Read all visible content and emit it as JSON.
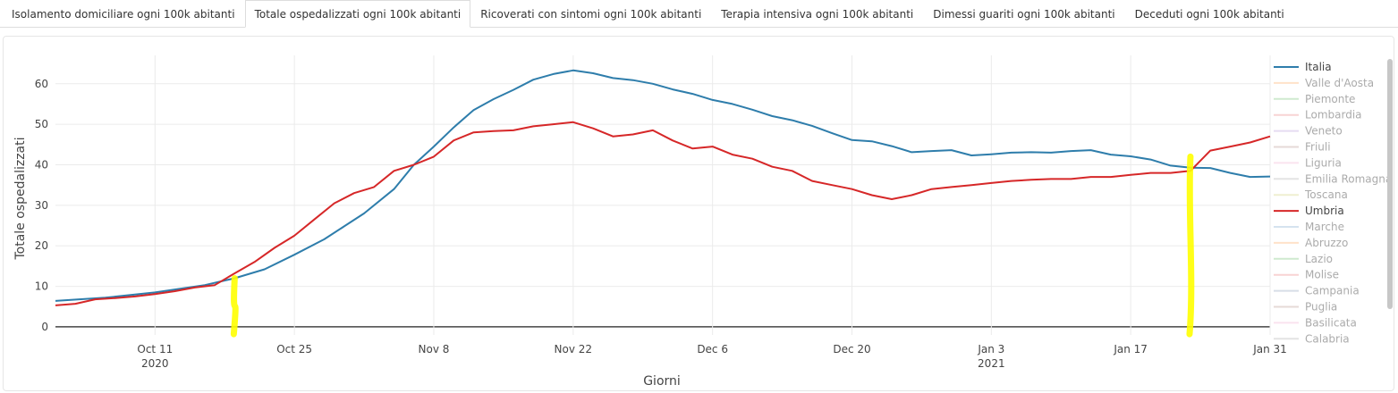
{
  "tabs": [
    {
      "label": "Isolamento domiciliare ogni 100k abitanti",
      "active": false
    },
    {
      "label": "Totale ospedalizzati ogni 100k abitanti",
      "active": true
    },
    {
      "label": "Ricoverati con sintomi ogni 100k abitanti",
      "active": false
    },
    {
      "label": "Terapia intensiva ogni 100k abitanti",
      "active": false
    },
    {
      "label": "Dimessi guariti ogni 100k abitanti",
      "active": false
    },
    {
      "label": "Deceduti ogni 100k abitanti",
      "active": false
    }
  ],
  "chart_data": {
    "type": "line",
    "xlabel": "Giorni",
    "ylabel": "Totale ospedalizzati",
    "ylim": [
      -2,
      67
    ],
    "yticks": [
      0,
      10,
      20,
      30,
      40,
      50,
      60
    ],
    "xlim": [
      "2020-10-01",
      "2021-01-31"
    ],
    "xticks": [
      {
        "date": "2020-10-11",
        "label": "Oct 11",
        "sublabel": "2020"
      },
      {
        "date": "2020-10-25",
        "label": "Oct 25",
        "sublabel": ""
      },
      {
        "date": "2020-11-08",
        "label": "Nov 8",
        "sublabel": ""
      },
      {
        "date": "2020-11-22",
        "label": "Nov 22",
        "sublabel": ""
      },
      {
        "date": "2020-12-06",
        "label": "Dec 6",
        "sublabel": ""
      },
      {
        "date": "2020-12-20",
        "label": "Dec 20",
        "sublabel": ""
      },
      {
        "date": "2021-01-03",
        "label": "Jan 3",
        "sublabel": "2021"
      },
      {
        "date": "2021-01-17",
        "label": "Jan 17",
        "sublabel": ""
      },
      {
        "date": "2021-01-31",
        "label": "Jan 31",
        "sublabel": ""
      }
    ],
    "grid": true,
    "legend_position": "right",
    "series": [
      {
        "name": "Italia",
        "color": "#2e7dab",
        "visible": true,
        "points": [
          [
            "2020-10-01",
            6.4
          ],
          [
            "2020-10-06",
            7.2
          ],
          [
            "2020-10-11",
            8.5
          ],
          [
            "2020-10-16",
            10.3
          ],
          [
            "2020-10-19",
            12.0
          ],
          [
            "2020-10-22",
            14.2
          ],
          [
            "2020-10-25",
            17.8
          ],
          [
            "2020-10-28",
            21.6
          ],
          [
            "2020-11-01",
            28.0
          ],
          [
            "2020-11-04",
            34.0
          ],
          [
            "2020-11-06",
            40.0
          ],
          [
            "2020-11-08",
            44.5
          ],
          [
            "2020-11-10",
            49.2
          ],
          [
            "2020-11-12",
            53.5
          ],
          [
            "2020-11-14",
            56.2
          ],
          [
            "2020-11-16",
            58.5
          ],
          [
            "2020-11-18",
            61.0
          ],
          [
            "2020-11-20",
            62.4
          ],
          [
            "2020-11-22",
            63.3
          ],
          [
            "2020-11-24",
            62.6
          ],
          [
            "2020-11-26",
            61.4
          ],
          [
            "2020-11-28",
            60.9
          ],
          [
            "2020-11-30",
            60.0
          ],
          [
            "2020-12-02",
            58.6
          ],
          [
            "2020-12-04",
            57.5
          ],
          [
            "2020-12-06",
            56.0
          ],
          [
            "2020-12-08",
            55.0
          ],
          [
            "2020-12-10",
            53.6
          ],
          [
            "2020-12-12",
            52.0
          ],
          [
            "2020-12-14",
            51.0
          ],
          [
            "2020-12-16",
            49.6
          ],
          [
            "2020-12-18",
            47.8
          ],
          [
            "2020-12-20",
            46.1
          ],
          [
            "2020-12-22",
            45.8
          ],
          [
            "2020-12-24",
            44.6
          ],
          [
            "2020-12-26",
            43.1
          ],
          [
            "2020-12-28",
            43.4
          ],
          [
            "2020-12-30",
            43.6
          ],
          [
            "2021-01-01",
            42.3
          ],
          [
            "2021-01-03",
            42.6
          ],
          [
            "2021-01-05",
            43.0
          ],
          [
            "2021-01-07",
            43.1
          ],
          [
            "2021-01-09",
            43.0
          ],
          [
            "2021-01-11",
            43.4
          ],
          [
            "2021-01-13",
            43.6
          ],
          [
            "2021-01-15",
            42.5
          ],
          [
            "2021-01-17",
            42.1
          ],
          [
            "2021-01-19",
            41.3
          ],
          [
            "2021-01-21",
            39.8
          ],
          [
            "2021-01-23",
            39.3
          ],
          [
            "2021-01-25",
            39.2
          ],
          [
            "2021-01-27",
            38.0
          ],
          [
            "2021-01-29",
            37.0
          ],
          [
            "2021-01-31",
            37.1
          ]
        ]
      },
      {
        "name": "Valle d'Aosta",
        "color": "#ffc18a",
        "visible": false
      },
      {
        "name": "Piemonte",
        "color": "#97d197",
        "visible": false
      },
      {
        "name": "Lombardia",
        "color": "#f0a0a0",
        "visible": false
      },
      {
        "name": "Veneto",
        "color": "#c8b3e3",
        "visible": false
      },
      {
        "name": "Friuli",
        "color": "#c9aea8",
        "visible": false
      },
      {
        "name": "Liguria",
        "color": "#f5c2dc",
        "visible": false
      },
      {
        "name": "Emilia Romagna",
        "color": "#c4c4c4",
        "visible": false
      },
      {
        "name": "Toscana",
        "color": "#dddd99",
        "visible": false
      },
      {
        "name": "Umbria",
        "color": "#d62728",
        "visible": true,
        "points": [
          [
            "2020-10-01",
            5.3
          ],
          [
            "2020-10-03",
            5.7
          ],
          [
            "2020-10-05",
            6.8
          ],
          [
            "2020-10-07",
            7.1
          ],
          [
            "2020-10-09",
            7.5
          ],
          [
            "2020-10-11",
            8.1
          ],
          [
            "2020-10-13",
            8.8
          ],
          [
            "2020-10-15",
            9.7
          ],
          [
            "2020-10-17",
            10.3
          ],
          [
            "2020-10-19",
            13.2
          ],
          [
            "2020-10-21",
            16.0
          ],
          [
            "2020-10-23",
            19.5
          ],
          [
            "2020-10-25",
            22.5
          ],
          [
            "2020-10-27",
            26.5
          ],
          [
            "2020-10-29",
            30.5
          ],
          [
            "2020-10-31",
            33.0
          ],
          [
            "2020-11-02",
            34.5
          ],
          [
            "2020-11-04",
            38.5
          ],
          [
            "2020-11-06",
            40.0
          ],
          [
            "2020-11-08",
            42.0
          ],
          [
            "2020-11-10",
            46.0
          ],
          [
            "2020-11-12",
            48.0
          ],
          [
            "2020-11-14",
            48.3
          ],
          [
            "2020-11-16",
            48.5
          ],
          [
            "2020-11-18",
            49.5
          ],
          [
            "2020-11-20",
            50.0
          ],
          [
            "2020-11-22",
            50.5
          ],
          [
            "2020-11-24",
            49.0
          ],
          [
            "2020-11-26",
            47.0
          ],
          [
            "2020-11-28",
            47.5
          ],
          [
            "2020-11-30",
            48.5
          ],
          [
            "2020-12-02",
            46.0
          ],
          [
            "2020-12-04",
            44.0
          ],
          [
            "2020-12-06",
            44.5
          ],
          [
            "2020-12-08",
            42.5
          ],
          [
            "2020-12-10",
            41.5
          ],
          [
            "2020-12-12",
            39.5
          ],
          [
            "2020-12-14",
            38.5
          ],
          [
            "2020-12-16",
            36.0
          ],
          [
            "2020-12-18",
            35.0
          ],
          [
            "2020-12-20",
            34.0
          ],
          [
            "2020-12-22",
            32.5
          ],
          [
            "2020-12-24",
            31.5
          ],
          [
            "2020-12-26",
            32.5
          ],
          [
            "2020-12-28",
            34.0
          ],
          [
            "2020-12-30",
            34.5
          ],
          [
            "2021-01-01",
            35.0
          ],
          [
            "2021-01-03",
            35.5
          ],
          [
            "2021-01-05",
            36.0
          ],
          [
            "2021-01-07",
            36.3
          ],
          [
            "2021-01-09",
            36.5
          ],
          [
            "2021-01-11",
            36.5
          ],
          [
            "2021-01-13",
            37.0
          ],
          [
            "2021-01-15",
            37.0
          ],
          [
            "2021-01-17",
            37.5
          ],
          [
            "2021-01-19",
            38.0
          ],
          [
            "2021-01-21",
            38.0
          ],
          [
            "2021-01-23",
            38.5
          ],
          [
            "2021-01-25",
            43.5
          ],
          [
            "2021-01-27",
            44.5
          ],
          [
            "2021-01-29",
            45.5
          ],
          [
            "2021-01-31",
            47.0
          ]
        ]
      },
      {
        "name": "Marche",
        "color": "#a4c2dc",
        "visible": false
      },
      {
        "name": "Abruzzo",
        "color": "#ffc18a",
        "visible": false
      },
      {
        "name": "Lazio",
        "color": "#97d197",
        "visible": false
      },
      {
        "name": "Molise",
        "color": "#f0a0a0",
        "visible": false
      },
      {
        "name": "Campania",
        "color": "#a8b8cc",
        "visible": false
      },
      {
        "name": "Puglia",
        "color": "#c9aea8",
        "visible": false
      },
      {
        "name": "Basilicata",
        "color": "#f5c2dc",
        "visible": false
      },
      {
        "name": "Calabria",
        "color": "#c4c4c4",
        "visible": false
      }
    ],
    "annotations": [
      {
        "type": "highlighter-stroke",
        "color": "#ffff00",
        "date": "2020-10-19"
      },
      {
        "type": "highlighter-stroke",
        "color": "#ffff00",
        "date": "2021-01-23"
      }
    ]
  }
}
